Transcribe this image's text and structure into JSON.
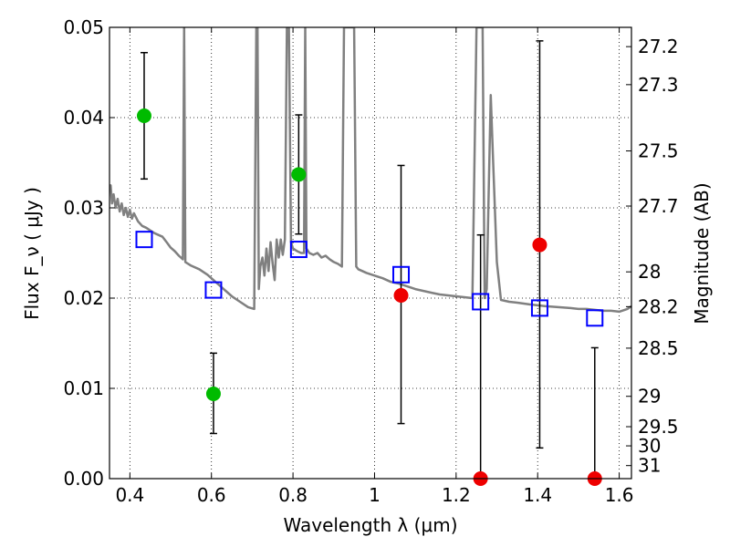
{
  "chart_data": {
    "type": "scatter",
    "title": "",
    "xlabel": "Wavelength  λ (μm)",
    "ylabel": "Flux  F_ν  ( μJy )",
    "ylabel_right": "Magnitude (AB)",
    "xlim": [
      0.35,
      1.63
    ],
    "ylim": [
      0.0,
      0.05
    ],
    "grid": true,
    "x_ticks": [
      {
        "value": 0.4,
        "label": "0.4"
      },
      {
        "value": 0.6,
        "label": "0.6"
      },
      {
        "value": 0.8,
        "label": "0.8"
      },
      {
        "value": 1.0,
        "label": "1"
      },
      {
        "value": 1.2,
        "label": "1.2"
      },
      {
        "value": 1.4,
        "label": "1.4"
      },
      {
        "value": 1.6,
        "label": "1.6"
      }
    ],
    "y_ticks": [
      {
        "value": 0.0,
        "label": "0.00"
      },
      {
        "value": 0.01,
        "label": "0.01"
      },
      {
        "value": 0.02,
        "label": "0.02"
      },
      {
        "value": 0.03,
        "label": "0.03"
      },
      {
        "value": 0.04,
        "label": "0.04"
      },
      {
        "value": 0.05,
        "label": "0.05"
      }
    ],
    "mag_ticks": [
      {
        "value": 27.2,
        "label": "27.2"
      },
      {
        "value": 27.3,
        "label": "27.3"
      },
      {
        "value": 27.5,
        "label": "27.5"
      },
      {
        "value": 27.7,
        "label": "27.7"
      },
      {
        "value": 28.0,
        "label": "28"
      },
      {
        "value": 28.2,
        "label": "28.2"
      },
      {
        "value": 28.5,
        "label": "28.5"
      },
      {
        "value": 29.0,
        "label": "29"
      },
      {
        "value": 29.5,
        "label": "29.5"
      },
      {
        "value": 30.0,
        "label": "30"
      },
      {
        "value": 31.0,
        "label": "31"
      }
    ],
    "model_spectrum": {
      "color": "#808080",
      "points": [
        [
          0.35,
          0.0318
        ],
        [
          0.353,
          0.0325
        ],
        [
          0.356,
          0.0305
        ],
        [
          0.36,
          0.0315
        ],
        [
          0.365,
          0.03
        ],
        [
          0.37,
          0.031
        ],
        [
          0.375,
          0.0296
        ],
        [
          0.38,
          0.0305
        ],
        [
          0.385,
          0.0292
        ],
        [
          0.39,
          0.03
        ],
        [
          0.395,
          0.029
        ],
        [
          0.4,
          0.0298
        ],
        [
          0.405,
          0.0288
        ],
        [
          0.41,
          0.0294
        ],
        [
          0.42,
          0.0285
        ],
        [
          0.43,
          0.028
        ],
        [
          0.44,
          0.0278
        ],
        [
          0.45,
          0.0275
        ],
        [
          0.46,
          0.0272
        ],
        [
          0.47,
          0.027
        ],
        [
          0.48,
          0.0268
        ],
        [
          0.49,
          0.0262
        ],
        [
          0.5,
          0.0256
        ],
        [
          0.51,
          0.0252
        ],
        [
          0.52,
          0.0247
        ],
        [
          0.53,
          0.0243
        ],
        [
          0.533,
          0.05
        ],
        [
          0.536,
          0.024
        ],
        [
          0.55,
          0.0236
        ],
        [
          0.57,
          0.0232
        ],
        [
          0.59,
          0.0226
        ],
        [
          0.61,
          0.0218
        ],
        [
          0.63,
          0.021
        ],
        [
          0.65,
          0.0202
        ],
        [
          0.67,
          0.0196
        ],
        [
          0.69,
          0.019
        ],
        [
          0.705,
          0.0188
        ],
        [
          0.71,
          0.05
        ],
        [
          0.713,
          0.05
        ],
        [
          0.716,
          0.021
        ],
        [
          0.72,
          0.0235
        ],
        [
          0.725,
          0.0245
        ],
        [
          0.73,
          0.0225
        ],
        [
          0.735,
          0.0255
        ],
        [
          0.74,
          0.023
        ],
        [
          0.745,
          0.0262
        ],
        [
          0.75,
          0.0238
        ],
        [
          0.755,
          0.022
        ],
        [
          0.76,
          0.0265
        ],
        [
          0.765,
          0.0245
        ],
        [
          0.77,
          0.0265
        ],
        [
          0.775,
          0.0248
        ],
        [
          0.78,
          0.0265
        ],
        [
          0.785,
          0.05
        ],
        [
          0.79,
          0.05
        ],
        [
          0.795,
          0.0262
        ],
        [
          0.8,
          0.0255
        ],
        [
          0.81,
          0.0252
        ],
        [
          0.82,
          0.025
        ],
        [
          0.827,
          0.025
        ],
        [
          0.83,
          0.05
        ],
        [
          0.833,
          0.0255
        ],
        [
          0.84,
          0.025
        ],
        [
          0.85,
          0.0248
        ],
        [
          0.86,
          0.025
        ],
        [
          0.87,
          0.0245
        ],
        [
          0.88,
          0.0247
        ],
        [
          0.89,
          0.0243
        ],
        [
          0.9,
          0.024
        ],
        [
          0.91,
          0.0238
        ],
        [
          0.92,
          0.0235
        ],
        [
          0.925,
          0.05
        ],
        [
          0.93,
          0.05
        ],
        [
          0.935,
          0.05
        ],
        [
          0.94,
          0.05
        ],
        [
          0.945,
          0.05
        ],
        [
          0.95,
          0.05
        ],
        [
          0.955,
          0.0235
        ],
        [
          0.96,
          0.0232
        ],
        [
          0.97,
          0.023
        ],
        [
          0.98,
          0.0228
        ],
        [
          1.0,
          0.0225
        ],
        [
          1.02,
          0.0222
        ],
        [
          1.04,
          0.0218
        ],
        [
          1.06,
          0.0216
        ],
        [
          1.08,
          0.0213
        ],
        [
          1.1,
          0.021
        ],
        [
          1.12,
          0.0208
        ],
        [
          1.14,
          0.0206
        ],
        [
          1.16,
          0.0204
        ],
        [
          1.18,
          0.0203
        ],
        [
          1.2,
          0.0202
        ],
        [
          1.22,
          0.0201
        ],
        [
          1.24,
          0.02
        ],
        [
          1.25,
          0.05
        ],
        [
          1.26,
          0.05
        ],
        [
          1.265,
          0.05
        ],
        [
          1.27,
          0.02
        ],
        [
          1.275,
          0.021
        ],
        [
          1.28,
          0.032
        ],
        [
          1.285,
          0.0425
        ],
        [
          1.29,
          0.036
        ],
        [
          1.3,
          0.024
        ],
        [
          1.31,
          0.0198
        ],
        [
          1.33,
          0.0196
        ],
        [
          1.35,
          0.0195
        ],
        [
          1.38,
          0.0193
        ],
        [
          1.4,
          0.0192
        ],
        [
          1.42,
          0.0191
        ],
        [
          1.45,
          0.019
        ],
        [
          1.48,
          0.0189
        ],
        [
          1.5,
          0.0188
        ],
        [
          1.52,
          0.0188
        ],
        [
          1.54,
          0.0187
        ],
        [
          1.56,
          0.0186
        ],
        [
          1.58,
          0.0186
        ],
        [
          1.6,
          0.0185
        ],
        [
          1.62,
          0.0188
        ],
        [
          1.63,
          0.0191
        ]
      ]
    },
    "model_photometry": {
      "marker": "open-square",
      "color": "#0000ff",
      "points": [
        [
          0.435,
          0.0265
        ],
        [
          0.605,
          0.0209
        ],
        [
          0.814,
          0.0254
        ],
        [
          1.065,
          0.0226
        ],
        [
          1.26,
          0.0196
        ],
        [
          1.405,
          0.0189
        ],
        [
          1.54,
          0.0178
        ]
      ]
    },
    "detections": {
      "color": "#00bb00",
      "points": [
        {
          "x": 0.435,
          "y": 0.0402,
          "err_low": 0.0332,
          "err_high": 0.0472
        },
        {
          "x": 0.605,
          "y": 0.0094,
          "err_low": 0.005,
          "err_high": 0.0139
        },
        {
          "x": 0.814,
          "y": 0.0337,
          "err_low": 0.0271,
          "err_high": 0.0403
        }
      ]
    },
    "low_significance": {
      "color": "#ee0000",
      "points": [
        {
          "x": 1.065,
          "y": 0.0203,
          "err_low": 0.0061,
          "err_high": 0.0347
        },
        {
          "x": 1.26,
          "y": 0.0,
          "err_low": 0.0,
          "err_high": 0.027
        },
        {
          "x": 1.405,
          "y": 0.0259,
          "err_low": 0.0034,
          "err_high": 0.0485
        },
        {
          "x": 1.54,
          "y": 0.0,
          "err_low": 0.0,
          "err_high": 0.0145
        }
      ]
    }
  }
}
